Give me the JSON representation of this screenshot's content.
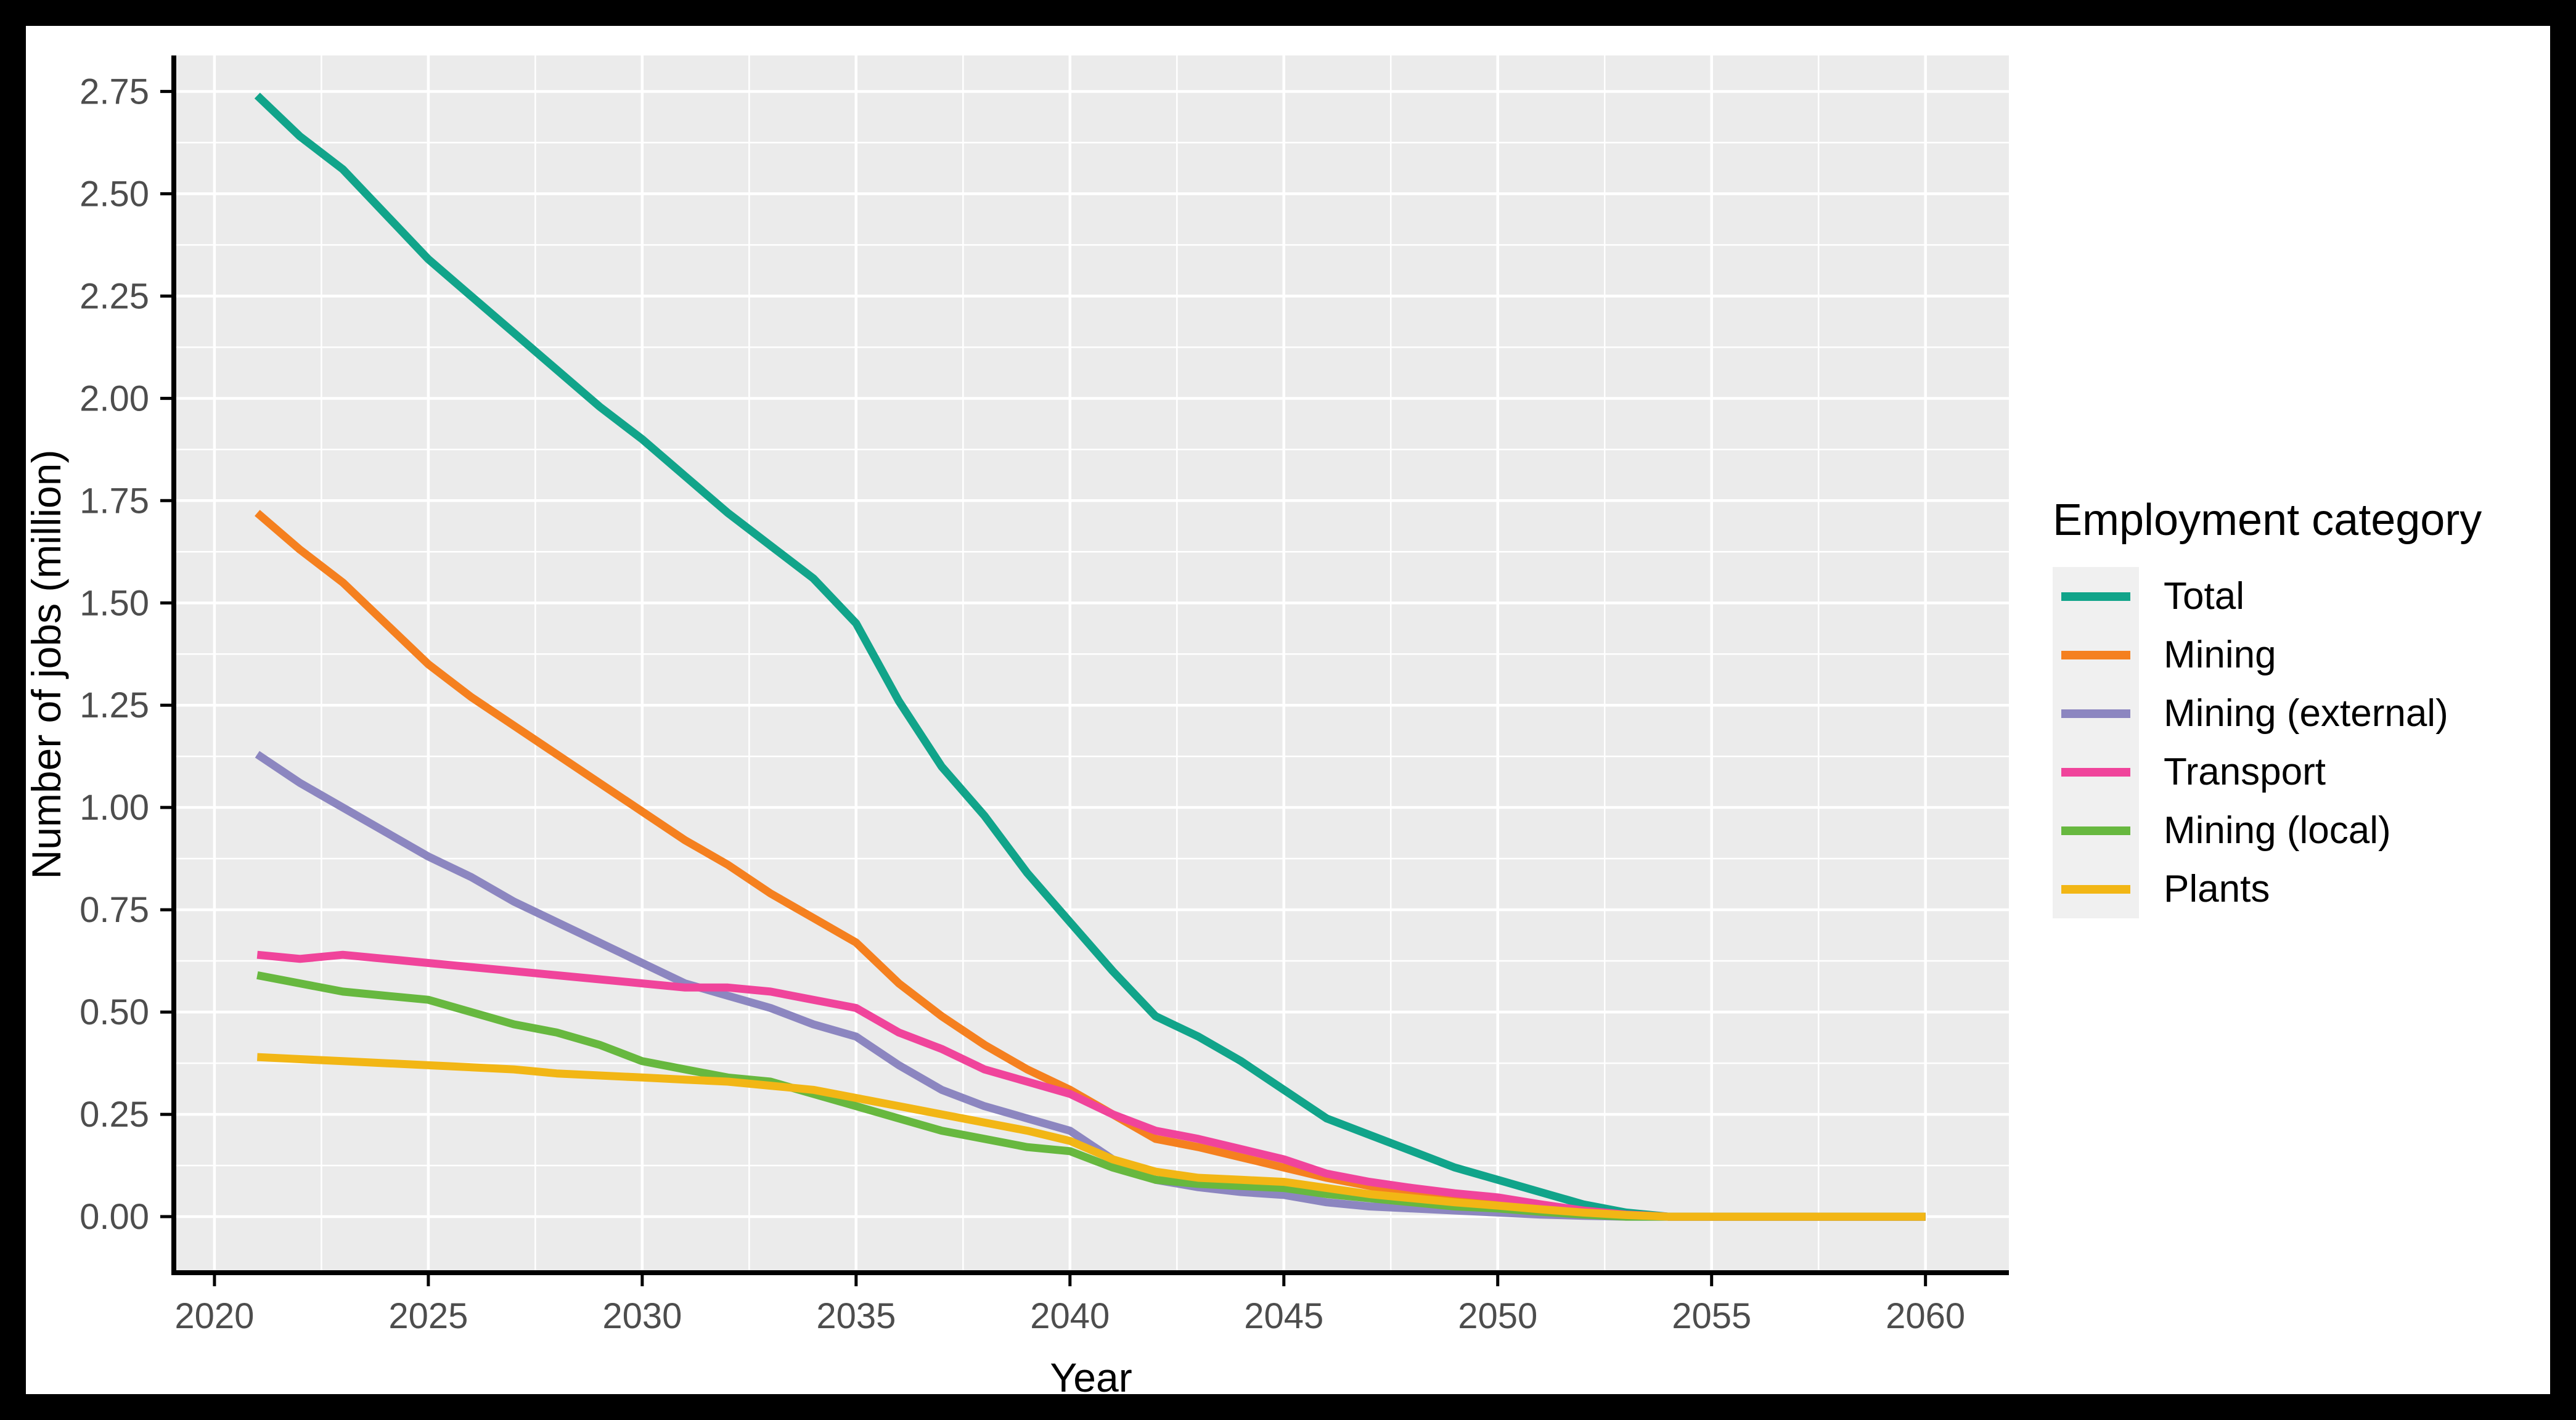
{
  "figure": {
    "background": "#ffffff",
    "frame_color": "#000000",
    "panel_background": "#ebebeb",
    "gridline_color": "#ffffff",
    "axis_line_color": "#000000",
    "tick_label_color": "#4d4d4d"
  },
  "axes": {
    "x_title": "Year",
    "y_title": "Number of jobs (million)",
    "x_tick_labels": [
      "2020",
      "2025",
      "2030",
      "2035",
      "2040",
      "2045",
      "2050",
      "2055",
      "2060"
    ],
    "y_tick_labels": [
      "0.00",
      "0.25",
      "0.50",
      "0.75",
      "1.00",
      "1.25",
      "1.50",
      "1.75",
      "2.00",
      "2.25",
      "2.50",
      "2.75"
    ]
  },
  "legend": {
    "title": "Employment category"
  },
  "chart_data": {
    "type": "line",
    "title": "",
    "xlabel": "Year",
    "ylabel": "Number of jobs (million)",
    "x": [
      2021,
      2022,
      2023,
      2024,
      2025,
      2026,
      2027,
      2028,
      2029,
      2030,
      2031,
      2032,
      2033,
      2034,
      2035,
      2036,
      2037,
      2038,
      2039,
      2040,
      2041,
      2042,
      2043,
      2044,
      2045,
      2046,
      2047,
      2048,
      2049,
      2050,
      2051,
      2052,
      2053,
      2054,
      2055,
      2056,
      2057,
      2058,
      2059,
      2060
    ],
    "x_major_ticks": [
      2020,
      2025,
      2030,
      2035,
      2040,
      2045,
      2050,
      2055,
      2060
    ],
    "x_minor_ticks": [
      2022.5,
      2027.5,
      2032.5,
      2037.5,
      2042.5,
      2047.5,
      2052.5,
      2057.5
    ],
    "y_major_ticks": [
      0,
      0.25,
      0.5,
      0.75,
      1.0,
      1.25,
      1.5,
      1.75,
      2.0,
      2.25,
      2.5,
      2.75
    ],
    "y_minor_ticks": [
      0.125,
      0.375,
      0.625,
      0.875,
      1.125,
      1.375,
      1.625,
      1.875,
      2.125,
      2.375,
      2.625
    ],
    "xlim": [
      2019.05,
      2061.95
    ],
    "ylim": [
      -0.137,
      2.838
    ],
    "grid": true,
    "legend_position": "right",
    "series": [
      {
        "name": "Total",
        "color": "#11a48a",
        "values": [
          2.74,
          2.64,
          2.56,
          2.45,
          2.34,
          2.25,
          2.16,
          2.07,
          1.98,
          1.9,
          1.81,
          1.72,
          1.64,
          1.56,
          1.45,
          1.26,
          1.1,
          0.98,
          0.84,
          0.72,
          0.6,
          0.49,
          0.44,
          0.38,
          0.31,
          0.24,
          0.2,
          0.16,
          0.12,
          0.09,
          0.06,
          0.03,
          0.01,
          0,
          0,
          0,
          0,
          0,
          0,
          0
        ]
      },
      {
        "name": "Mining",
        "color": "#f5801f",
        "values": [
          1.72,
          1.63,
          1.55,
          1.45,
          1.35,
          1.27,
          1.2,
          1.13,
          1.06,
          0.99,
          0.92,
          0.86,
          0.79,
          0.73,
          0.67,
          0.57,
          0.49,
          0.42,
          0.36,
          0.31,
          0.25,
          0.19,
          0.17,
          0.145,
          0.12,
          0.095,
          0.075,
          0.055,
          0.045,
          0.035,
          0.02,
          0.01,
          0.004,
          0,
          0,
          0,
          0,
          0,
          0,
          0
        ]
      },
      {
        "name": "Mining (external)",
        "color": "#8c86c0",
        "values": [
          1.13,
          1.06,
          1.0,
          0.94,
          0.88,
          0.83,
          0.77,
          0.72,
          0.67,
          0.62,
          0.57,
          0.54,
          0.51,
          0.47,
          0.44,
          0.37,
          0.31,
          0.27,
          0.24,
          0.21,
          0.14,
          0.09,
          0.072,
          0.06,
          0.053,
          0.035,
          0.025,
          0.02,
          0.015,
          0.01,
          0.005,
          0.002,
          0,
          0,
          0,
          0,
          0,
          0,
          0,
          0
        ]
      },
      {
        "name": "Transport",
        "color": "#f0449b",
        "values": [
          0.64,
          0.63,
          0.64,
          0.63,
          0.62,
          0.61,
          0.6,
          0.59,
          0.58,
          0.57,
          0.56,
          0.56,
          0.55,
          0.53,
          0.51,
          0.45,
          0.41,
          0.36,
          0.33,
          0.3,
          0.25,
          0.21,
          0.19,
          0.165,
          0.14,
          0.105,
          0.085,
          0.07,
          0.057,
          0.047,
          0.03,
          0.015,
          0.005,
          0,
          0,
          0,
          0,
          0,
          0,
          0
        ]
      },
      {
        "name": "Mining (local)",
        "color": "#67b83f",
        "values": [
          0.59,
          0.57,
          0.55,
          0.54,
          0.53,
          0.5,
          0.47,
          0.45,
          0.42,
          0.38,
          0.36,
          0.34,
          0.33,
          0.3,
          0.27,
          0.24,
          0.21,
          0.19,
          0.17,
          0.16,
          0.12,
          0.09,
          0.08,
          0.075,
          0.07,
          0.055,
          0.045,
          0.035,
          0.025,
          0.02,
          0.012,
          0.005,
          0,
          0,
          0,
          0,
          0,
          0,
          0,
          0
        ]
      },
      {
        "name": "Plants",
        "color": "#f2b615",
        "values": [
          0.39,
          0.385,
          0.38,
          0.375,
          0.37,
          0.365,
          0.36,
          0.35,
          0.345,
          0.34,
          0.335,
          0.33,
          0.32,
          0.31,
          0.29,
          0.27,
          0.25,
          0.23,
          0.21,
          0.185,
          0.14,
          0.11,
          0.095,
          0.09,
          0.085,
          0.07,
          0.055,
          0.045,
          0.035,
          0.027,
          0.018,
          0.01,
          0.004,
          0,
          0,
          0,
          0,
          0,
          0,
          0
        ]
      }
    ]
  }
}
